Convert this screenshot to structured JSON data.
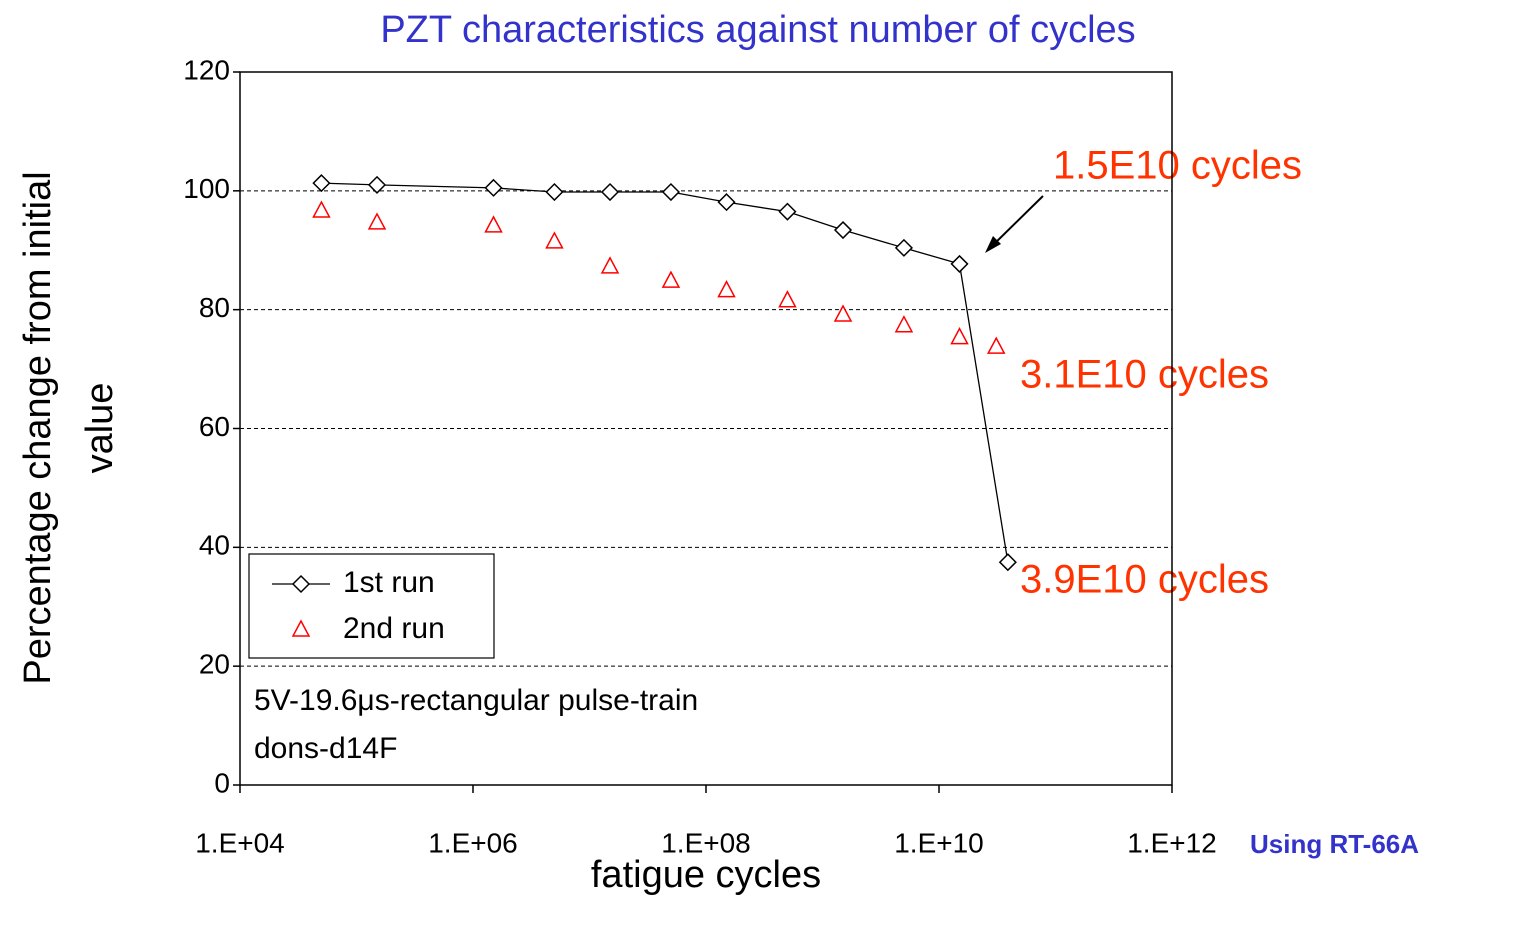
{
  "chart_data": {
    "type": "scatter",
    "title": "PZT characteristics against number of cycles",
    "x_label": "fatigue cycles",
    "y_label": [
      "Percentage change from initial",
      "value"
    ],
    "xscale": "log",
    "xlim": [
      10000,
      1000000000000
    ],
    "xticks": [
      {
        "value": 10000,
        "label": "1.E+04"
      },
      {
        "value": 1000000,
        "label": "1.E+06"
      },
      {
        "value": 100000000,
        "label": "1.E+08"
      },
      {
        "value": 10000000000,
        "label": "1.E+10"
      },
      {
        "value": 1000000000000,
        "label": "1.E+12"
      }
    ],
    "ylim": [
      0,
      120
    ],
    "yticks": [
      0,
      20,
      40,
      60,
      80,
      100,
      120
    ],
    "grid": true,
    "legend": "lower left",
    "series": [
      {
        "name": "1st run",
        "color": "#000000",
        "marker": "diamond",
        "line": true,
        "x": [
          50000,
          150000,
          1500000,
          5000000,
          15000000,
          50000000,
          150000000,
          500000000,
          1500000000,
          5000000000,
          15000000000,
          39000000000
        ],
        "values": [
          101.3,
          101,
          100.5,
          99.8,
          99.8,
          99.8,
          98.1,
          96.5,
          93.4,
          90.4,
          87.7,
          37.5
        ]
      },
      {
        "name": "2nd run",
        "color": "#ff0000",
        "marker": "triangle",
        "line": false,
        "x": [
          50000,
          150000,
          1500000,
          5000000,
          15000000,
          50000000,
          150000000,
          500000000,
          1500000000,
          5000000000,
          15000000000,
          31000000000
        ],
        "values": [
          96.6,
          94.6,
          94.1,
          91.4,
          87.2,
          84.8,
          83.2,
          81.5,
          79.1,
          77.3,
          75.3,
          73.7
        ]
      }
    ],
    "annotations": [
      "1.5E10 cycles",
      "3.1E10 cycles",
      "3.9E10 cycles"
    ],
    "note": [
      "5V-19.6μs-rectangular pulse-train",
      "dons-d14F"
    ],
    "footer": "Using RT-66A"
  }
}
